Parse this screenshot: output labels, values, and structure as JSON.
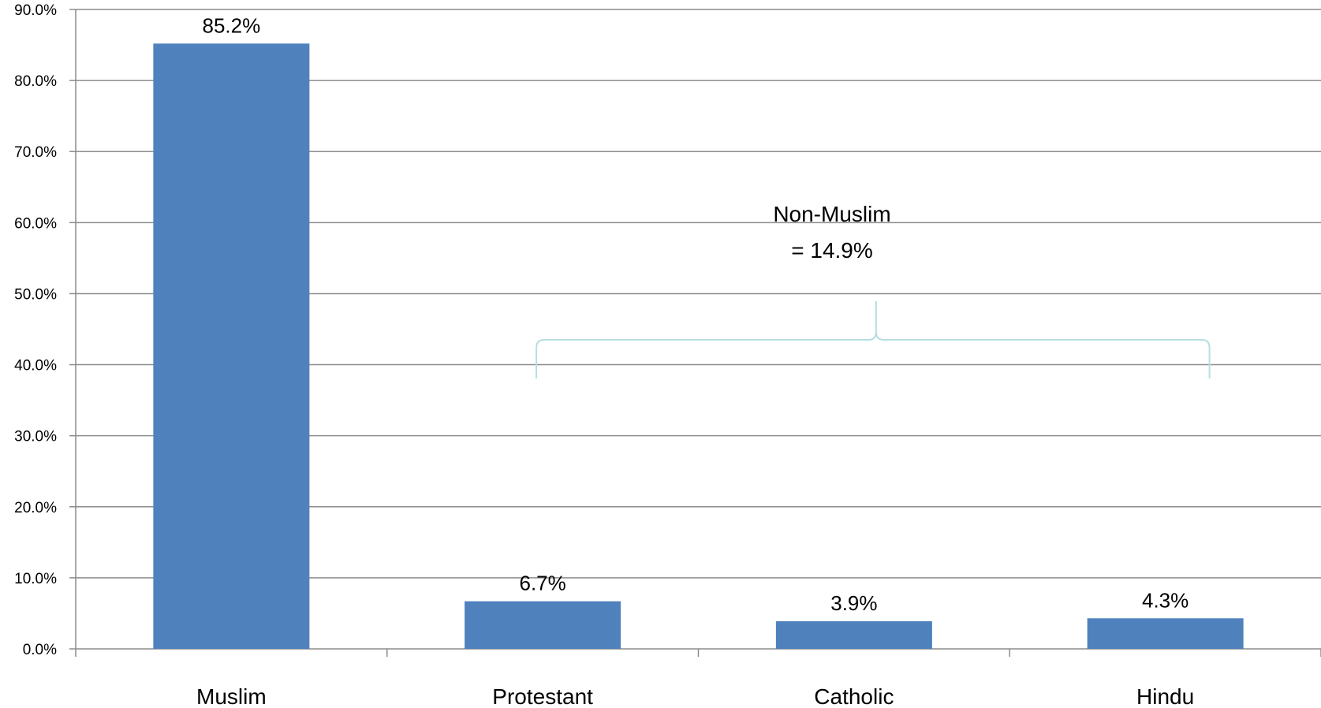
{
  "chart_data": {
    "type": "bar",
    "categories": [
      "Muslim",
      "Protestant",
      "Catholic",
      "Hindu"
    ],
    "values": [
      85.2,
      6.7,
      3.9,
      4.3
    ],
    "data_labels": [
      "85.2%",
      "6.7%",
      "3.9%",
      "4.3%"
    ],
    "ylim": [
      0,
      90
    ],
    "yticks": [
      0,
      10,
      20,
      30,
      40,
      50,
      60,
      70,
      80,
      90
    ],
    "ytick_labels": [
      "0.0%",
      "10.0%",
      "20.0%",
      "30.0%",
      "40.0%",
      "50.0%",
      "60.0%",
      "70.0%",
      "80.0%",
      "90.0%"
    ],
    "grid": true,
    "bar_color": "#4f81bd",
    "annotation": {
      "line1": "Non-Muslim",
      "line2": "= 14.9%",
      "spans": [
        "Protestant",
        "Catholic",
        "Hindu"
      ],
      "brace_color": "#b7dde0"
    }
  }
}
